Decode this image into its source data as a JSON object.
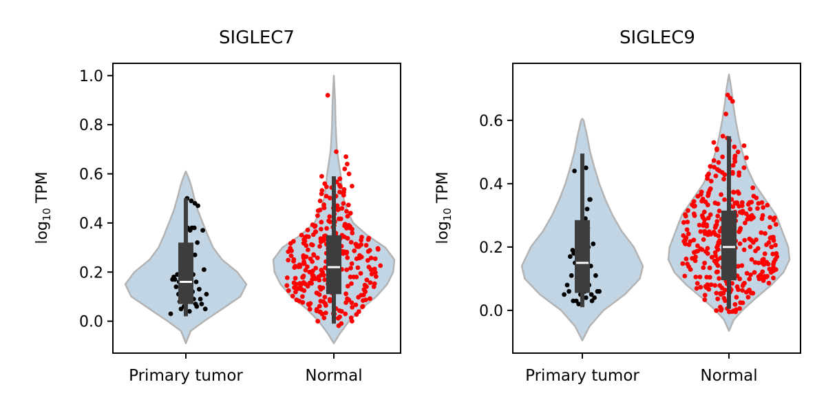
{
  "chart_data": [
    {
      "type": "violin",
      "title": "SIGLEC7",
      "ylabel_base": "log",
      "ylabel_sub": "10",
      "ylabel_rest": " TPM",
      "categories": [
        "Primary tumor",
        "Normal"
      ],
      "ylim": [
        -0.13,
        1.05
      ],
      "yticks": [
        0.0,
        0.2,
        0.4,
        0.6,
        0.8,
        1.0
      ],
      "ytick_labels": [
        "0.0",
        "0.2",
        "0.4",
        "0.6",
        "0.8",
        "1.0"
      ],
      "groups": [
        {
          "name": "Primary tumor",
          "point_color": "#000000",
          "violin_range": [
            -0.09,
            0.61
          ],
          "violin_width": [
            [
              -0.09,
              0.0
            ],
            [
              -0.04,
              0.08
            ],
            [
              0.0,
              0.3
            ],
            [
              0.05,
              0.6
            ],
            [
              0.1,
              0.9
            ],
            [
              0.15,
              1.0
            ],
            [
              0.2,
              0.85
            ],
            [
              0.25,
              0.6
            ],
            [
              0.3,
              0.45
            ],
            [
              0.35,
              0.36
            ],
            [
              0.4,
              0.28
            ],
            [
              0.45,
              0.2
            ],
            [
              0.5,
              0.14
            ],
            [
              0.55,
              0.09
            ],
            [
              0.58,
              0.05
            ],
            [
              0.61,
              0.0
            ]
          ],
          "box": {
            "q1": 0.07,
            "median": 0.16,
            "q3": 0.32,
            "whisker_low": 0.02,
            "whisker_high": 0.5
          },
          "points": [
            [
              -0.25,
              0.03
            ],
            [
              -0.22,
              0.17
            ],
            [
              -0.2,
              0.18
            ],
            [
              -0.18,
              0.17
            ],
            [
              -0.16,
              0.14
            ],
            [
              -0.14,
              0.19
            ],
            [
              -0.12,
              0.11
            ],
            [
              -0.1,
              0.08
            ],
            [
              -0.08,
              0.05
            ],
            [
              -0.06,
              0.24
            ],
            [
              -0.05,
              0.09
            ],
            [
              -0.04,
              0.13
            ],
            [
              -0.03,
              0.06
            ],
            [
              -0.02,
              0.2
            ],
            [
              0.0,
              0.1
            ],
            [
              0.01,
              0.25
            ],
            [
              0.02,
              0.5
            ],
            [
              0.03,
              0.38
            ],
            [
              0.04,
              0.14
            ],
            [
              0.05,
              0.3
            ],
            [
              0.06,
              0.04
            ],
            [
              0.07,
              0.37
            ],
            [
              0.08,
              0.28
            ],
            [
              0.09,
              0.49
            ],
            [
              0.1,
              0.38
            ],
            [
              0.11,
              0.12
            ],
            [
              0.12,
              0.19
            ],
            [
              0.13,
              0.09
            ],
            [
              0.14,
              0.38
            ],
            [
              0.15,
              0.27
            ],
            [
              0.16,
              0.07
            ],
            [
              0.17,
              0.16
            ],
            [
              0.18,
              0.06
            ],
            [
              0.19,
              0.32
            ],
            [
              0.2,
              0.47
            ],
            [
              0.22,
              0.13
            ],
            [
              0.24,
              0.09
            ],
            [
              0.26,
              0.07
            ],
            [
              0.28,
              0.37
            ],
            [
              0.3,
              0.21
            ],
            [
              0.32,
              0.05
            ],
            [
              0.34,
              0.11
            ],
            [
              -0.11,
              0.16
            ],
            [
              0.15,
              0.48
            ],
            [
              -0.01,
              0.17
            ]
          ]
        },
        {
          "name": "Normal",
          "point_color": "#ff0000",
          "violin_range": [
            -0.09,
            1.0
          ],
          "violin_width": [
            [
              -0.09,
              0.0
            ],
            [
              -0.05,
              0.1
            ],
            [
              0.0,
              0.25
            ],
            [
              0.05,
              0.45
            ],
            [
              0.1,
              0.7
            ],
            [
              0.15,
              0.88
            ],
            [
              0.2,
              0.98
            ],
            [
              0.25,
              1.0
            ],
            [
              0.3,
              0.85
            ],
            [
              0.35,
              0.55
            ],
            [
              0.4,
              0.32
            ],
            [
              0.45,
              0.22
            ],
            [
              0.5,
              0.16
            ],
            [
              0.55,
              0.13
            ],
            [
              0.6,
              0.11
            ],
            [
              0.65,
              0.08
            ],
            [
              0.7,
              0.05
            ],
            [
              0.8,
              0.03
            ],
            [
              0.9,
              0.02
            ],
            [
              1.0,
              0.0
            ]
          ],
          "box": {
            "q1": 0.11,
            "median": 0.22,
            "q3": 0.35,
            "whisker_low": -0.01,
            "whisker_high": 0.59
          },
          "points_seed": 7,
          "points_count": 300,
          "points_extra": [
            [
              -0.1,
              0.92
            ],
            [
              0.04,
              0.69
            ],
            [
              0.2,
              0.67
            ],
            [
              0.22,
              0.64
            ],
            [
              0.18,
              0.62
            ],
            [
              -0.2,
              0.59
            ],
            [
              -0.15,
              0.56
            ],
            [
              0.1,
              0.58
            ],
            [
              0.3,
              0.55
            ],
            [
              0.45,
              0.33
            ],
            [
              -0.4,
              0.2
            ],
            [
              0.3,
              0.0
            ],
            [
              -0.35,
              0.31
            ],
            [
              0.25,
              0.6
            ]
          ]
        }
      ]
    },
    {
      "type": "violin",
      "title": "SIGLEC9",
      "ylabel_base": "log",
      "ylabel_sub": "10",
      "ylabel_rest": " TPM",
      "categories": [
        "Primary tumor",
        "Normal"
      ],
      "ylim": [
        -0.135,
        0.78
      ],
      "yticks": [
        0.0,
        0.2,
        0.4,
        0.6
      ],
      "ytick_labels": [
        "0.0",
        "0.2",
        "0.4",
        "0.6"
      ],
      "groups": [
        {
          "name": "Primary tumor",
          "point_color": "#000000",
          "violin_range": [
            -0.095,
            0.605
          ],
          "violin_width": [
            [
              -0.095,
              0.0
            ],
            [
              -0.05,
              0.12
            ],
            [
              0.0,
              0.35
            ],
            [
              0.05,
              0.7
            ],
            [
              0.1,
              0.95
            ],
            [
              0.14,
              1.0
            ],
            [
              0.2,
              0.85
            ],
            [
              0.25,
              0.65
            ],
            [
              0.3,
              0.5
            ],
            [
              0.35,
              0.38
            ],
            [
              0.4,
              0.28
            ],
            [
              0.45,
              0.2
            ],
            [
              0.5,
              0.13
            ],
            [
              0.55,
              0.08
            ],
            [
              0.6,
              0.02
            ],
            [
              0.605,
              0.0
            ]
          ],
          "box": {
            "q1": 0.055,
            "median": 0.15,
            "q3": 0.285,
            "whisker_low": 0.01,
            "whisker_high": 0.495
          },
          "points": [
            [
              -0.3,
              0.05
            ],
            [
              -0.25,
              0.08
            ],
            [
              -0.22,
              0.06
            ],
            [
              -0.2,
              0.17
            ],
            [
              -0.18,
              0.11
            ],
            [
              -0.16,
              0.19
            ],
            [
              -0.14,
              0.18
            ],
            [
              -0.13,
              0.44
            ],
            [
              -0.12,
              0.15
            ],
            [
              -0.1,
              0.03
            ],
            [
              -0.08,
              0.09
            ],
            [
              -0.06,
              0.02
            ],
            [
              -0.05,
              0.12
            ],
            [
              -0.04,
              0.07
            ],
            [
              -0.03,
              0.05
            ],
            [
              -0.02,
              0.27
            ],
            [
              -0.01,
              0.18
            ],
            [
              0.0,
              0.15
            ],
            [
              0.01,
              0.09
            ],
            [
              0.02,
              0.22
            ],
            [
              0.03,
              0.13
            ],
            [
              0.04,
              0.06
            ],
            [
              0.05,
              0.29
            ],
            [
              0.06,
              0.04
            ],
            [
              0.07,
              0.19
            ],
            [
              0.08,
              0.32
            ],
            [
              0.09,
              0.26
            ],
            [
              0.1,
              0.2
            ],
            [
              0.11,
              0.08
            ],
            [
              0.12,
              0.35
            ],
            [
              0.13,
              0.35
            ],
            [
              0.14,
              0.14
            ],
            [
              0.15,
              0.05
            ],
            [
              0.16,
              0.03
            ],
            [
              0.18,
              0.21
            ],
            [
              0.2,
              0.04
            ],
            [
              0.22,
              0.11
            ],
            [
              0.25,
              0.06
            ],
            [
              0.28,
              0.06
            ],
            [
              -0.15,
              0.03
            ],
            [
              0.06,
              0.45
            ],
            [
              -0.09,
              0.1
            ]
          ]
        },
        {
          "name": "Normal",
          "point_color": "#ff0000",
          "violin_range": [
            -0.065,
            0.745
          ],
          "violin_width": [
            [
              -0.065,
              0.0
            ],
            [
              -0.03,
              0.08
            ],
            [
              0.0,
              0.22
            ],
            [
              0.04,
              0.45
            ],
            [
              0.08,
              0.7
            ],
            [
              0.12,
              0.9
            ],
            [
              0.16,
              1.0
            ],
            [
              0.2,
              0.98
            ],
            [
              0.25,
              0.88
            ],
            [
              0.3,
              0.78
            ],
            [
              0.35,
              0.6
            ],
            [
              0.4,
              0.42
            ],
            [
              0.45,
              0.3
            ],
            [
              0.5,
              0.22
            ],
            [
              0.55,
              0.16
            ],
            [
              0.6,
              0.11
            ],
            [
              0.65,
              0.07
            ],
            [
              0.7,
              0.04
            ],
            [
              0.745,
              0.0
            ]
          ],
          "box": {
            "q1": 0.095,
            "median": 0.2,
            "q3": 0.315,
            "whisker_low": 0.005,
            "whisker_high": 0.55
          },
          "points_seed": 11,
          "points_count": 340,
          "points_extra": [
            [
              -0.02,
              0.68
            ],
            [
              0.02,
              0.67
            ],
            [
              0.06,
              0.66
            ],
            [
              -0.05,
              0.62
            ],
            [
              -0.25,
              0.53
            ],
            [
              -0.2,
              0.51
            ],
            [
              0.15,
              0.5
            ],
            [
              0.25,
              0.52
            ],
            [
              0.35,
              0.32
            ],
            [
              0.38,
              0.3
            ],
            [
              -0.38,
              0.27
            ],
            [
              -0.4,
              0.25
            ],
            [
              -0.1,
              0.55
            ],
            [
              0.1,
              0.47
            ]
          ]
        }
      ]
    }
  ],
  "colors": {
    "violin_fill": "#c1d5e4",
    "violin_edge": "#b3b3b3",
    "box_fill": "#3d3d3d",
    "median": "#ffffff",
    "axes": "#000000"
  }
}
